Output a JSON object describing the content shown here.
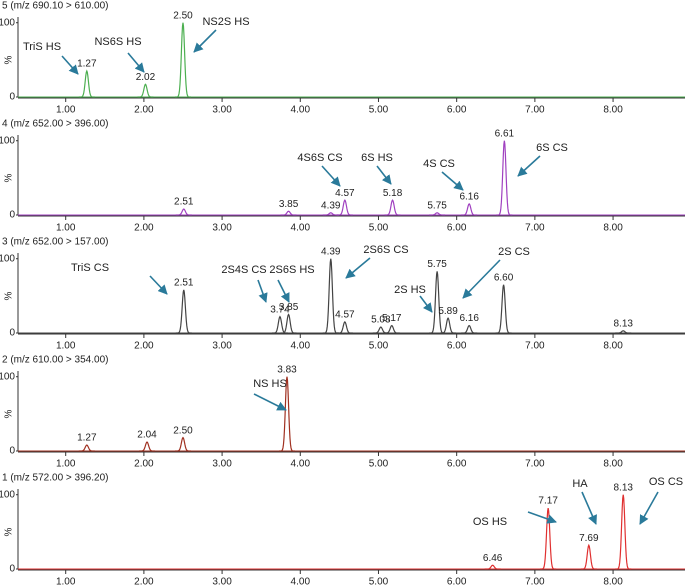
{
  "chart_data": [
    {
      "type": "chromatogram",
      "title": "5 (m/z 690.10 > 610.00)",
      "color": "#4caf50",
      "ylabel": "%",
      "x": [
        1.27,
        2.02,
        2.5
      ],
      "values": [
        35,
        17,
        100
      ],
      "peak_labels": [
        "1.27",
        "2.02",
        "2.50"
      ],
      "annotations": [
        "TriS HS",
        "NS6S HS",
        "NS2S HS"
      ],
      "xlim": [
        0.39,
        8.92
      ],
      "xticks": [
        {
          "value": 1,
          "label": "1.00"
        },
        {
          "value": 2,
          "label": "2.00"
        },
        {
          "value": 3,
          "label": "3.00"
        },
        {
          "value": 4,
          "label": "4.00"
        },
        {
          "value": 5,
          "label": "5.00"
        },
        {
          "value": 6,
          "label": "6.00"
        },
        {
          "value": 7,
          "label": "7.00"
        },
        {
          "value": 8,
          "label": "8.00"
        }
      ],
      "ylim": [
        0,
        105
      ],
      "yticks": [
        0,
        100
      ]
    },
    {
      "type": "chromatogram",
      "title": "4 (m/z 652.00 > 396.00)",
      "color": "#a040c0",
      "ylabel": "%",
      "x": [
        2.51,
        3.85,
        4.39,
        4.57,
        5.18,
        5.75,
        6.16,
        6.61
      ],
      "values": [
        8,
        5,
        3,
        20,
        20,
        3,
        15,
        100
      ],
      "peak_labels": [
        "2.51",
        "3.85",
        "4.39",
        "4.57",
        "5.18",
        "5.75",
        "6.16",
        "6.61"
      ],
      "annotations": [
        "4S6S CS",
        "6S HS",
        "4S CS",
        "6S CS"
      ],
      "xlim": [
        0.39,
        8.92
      ],
      "xticks": [
        {
          "value": 1,
          "label": "1.00"
        },
        {
          "value": 2,
          "label": "2.00"
        },
        {
          "value": 3,
          "label": "3.00"
        },
        {
          "value": 4,
          "label": "4.00"
        },
        {
          "value": 5,
          "label": "5.00"
        },
        {
          "value": 6,
          "label": "6.00"
        },
        {
          "value": 7,
          "label": "7.00"
        },
        {
          "value": 8,
          "label": "8.00"
        }
      ],
      "ylim": [
        0,
        105
      ],
      "yticks": [
        0,
        100
      ]
    },
    {
      "type": "chromatogram",
      "title": "3 (m/z 652.00 > 157.00)",
      "color": "#444444",
      "ylabel": "%",
      "x": [
        2.51,
        3.74,
        3.85,
        4.39,
        4.57,
        5.03,
        5.17,
        5.75,
        5.89,
        6.16,
        6.6,
        8.13
      ],
      "values": [
        58,
        22,
        25,
        100,
        15,
        8,
        10,
        83,
        20,
        10,
        65,
        3
      ],
      "peak_labels": [
        "2.51",
        "3.74",
        "3.85",
        "4.39",
        "4.57",
        "5.03",
        "5.17",
        "5.75",
        "5.89",
        "6.16",
        "6.60",
        "8.13"
      ],
      "annotations": [
        "TriS CS",
        "2S4S CS",
        "2S6S HS",
        "2S6S CS",
        "2S HS",
        "2S CS"
      ],
      "xlim": [
        0.39,
        8.92
      ],
      "xticks": [
        {
          "value": 1,
          "label": "1.00"
        },
        {
          "value": 2,
          "label": "2.00"
        },
        {
          "value": 3,
          "label": "3.00"
        },
        {
          "value": 4,
          "label": "4.00"
        },
        {
          "value": 5,
          "label": "5.00"
        },
        {
          "value": 6,
          "label": "6.00"
        },
        {
          "value": 7,
          "label": "7.00"
        },
        {
          "value": 8,
          "label": "8.00"
        }
      ],
      "ylim": [
        0,
        105
      ],
      "yticks": [
        0,
        100
      ]
    },
    {
      "type": "chromatogram",
      "title": "2 (m/z 610.00 > 354.00)",
      "color": "#a03020",
      "ylabel": "%",
      "x": [
        1.27,
        2.04,
        2.5,
        3.83
      ],
      "values": [
        8,
        12,
        18,
        100
      ],
      "peak_labels": [
        "1.27",
        "2.04",
        "2.50",
        "3.83"
      ],
      "annotations": [
        "NS HS"
      ],
      "xlim": [
        0.39,
        8.92
      ],
      "xticks": [
        {
          "value": 1,
          "label": "1.00"
        },
        {
          "value": 2,
          "label": "2.00"
        },
        {
          "value": 3,
          "label": "3.00"
        },
        {
          "value": 4,
          "label": "4.00"
        },
        {
          "value": 5,
          "label": "5.00"
        },
        {
          "value": 6,
          "label": "6.00"
        },
        {
          "value": 7,
          "label": "7.00"
        },
        {
          "value": 8,
          "label": "8.00"
        }
      ],
      "ylim": [
        0,
        105
      ],
      "yticks": [
        0,
        100
      ]
    },
    {
      "type": "chromatogram",
      "title": "1 (m/z 572.00 > 396.20)",
      "color": "#e03030",
      "ylabel": "%",
      "x": [
        6.46,
        7.17,
        7.69,
        8.13
      ],
      "values": [
        5,
        82,
        32,
        100
      ],
      "peak_labels": [
        "6.46",
        "7.17",
        "7.69",
        "8.13"
      ],
      "annotations": [
        "OS HS",
        "HA",
        "OS CS"
      ],
      "xlim": [
        0.39,
        8.92
      ],
      "xticks": [
        {
          "value": 1,
          "label": "1.00"
        },
        {
          "value": 2,
          "label": "2.00"
        },
        {
          "value": 3,
          "label": "3.00"
        },
        {
          "value": 4,
          "label": "4.00"
        },
        {
          "value": 5,
          "label": "5.00"
        },
        {
          "value": 6,
          "label": "6.00"
        },
        {
          "value": 7,
          "label": "7.00"
        },
        {
          "value": 8,
          "label": "8.00"
        }
      ],
      "ylim": [
        0,
        105
      ],
      "yticks": [
        0,
        100
      ]
    }
  ]
}
